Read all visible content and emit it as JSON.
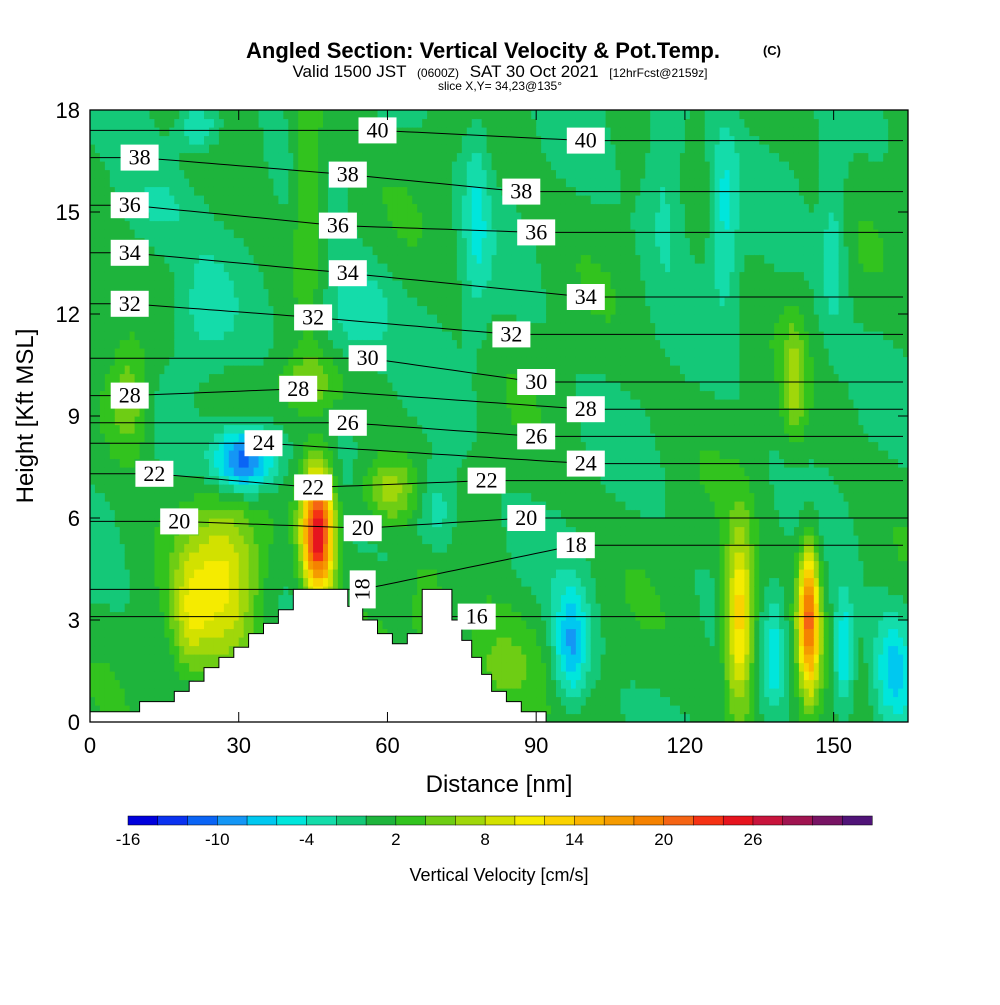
{
  "chart_data": {
    "type": "heatmap",
    "title": "Angled Section: Vertical Velocity & Pot.Temp.",
    "title_unit": "(C)",
    "subtitle_main": "Valid 1500 JST",
    "subtitle_zulu": "(0600Z)",
    "subtitle_date": "SAT 30 Oct 2021",
    "subtitle_fcst": "[12hrFcst@2159z]",
    "slice_label": "slice X,Y= 34,23@135°",
    "xlabel": "Distance [nm]",
    "ylabel": "Height [Kft MSL]",
    "xlim": [
      0,
      165
    ],
    "ylim": [
      0,
      18
    ],
    "x_ticks": [
      0,
      30,
      60,
      90,
      120,
      150
    ],
    "y_ticks": [
      0,
      3,
      6,
      9,
      12,
      15,
      18
    ],
    "colorbar": {
      "label": "Vertical Velocity [cm/s]",
      "colors": [
        "#0000dc",
        "#0a32f0",
        "#0a64f5",
        "#1496f5",
        "#00c8f0",
        "#00e6dc",
        "#14dcaa",
        "#14c878",
        "#1eb43c",
        "#32c31e",
        "#6ecd14",
        "#a0d70a",
        "#d2e100",
        "#f5eb00",
        "#fad200",
        "#fab400",
        "#f59b00",
        "#f58200",
        "#f56414",
        "#f53214",
        "#e6141e",
        "#c8143c",
        "#a01450",
        "#781464",
        "#501478"
      ],
      "min": -16,
      "step": 2,
      "tick_labels": [
        "-16",
        "-10",
        "-4",
        "2",
        "8",
        "14",
        "20",
        "26"
      ],
      "tick_values": [
        -16,
        -10,
        -4,
        2,
        8,
        14,
        20,
        26
      ]
    },
    "theta_labels": [
      {
        "text": "38",
        "x": 10,
        "y": 16.6
      },
      {
        "text": "36",
        "x": 8,
        "y": 15.2
      },
      {
        "text": "34",
        "x": 8,
        "y": 13.8
      },
      {
        "text": "32",
        "x": 8,
        "y": 12.3
      },
      {
        "text": "28",
        "x": 8,
        "y": 9.6
      },
      {
        "text": "22",
        "x": 13,
        "y": 7.3
      },
      {
        "text": "20",
        "x": 18,
        "y": 5.9
      },
      {
        "text": "40",
        "x": 58,
        "y": 17.4
      },
      {
        "text": "38",
        "x": 52,
        "y": 16.1
      },
      {
        "text": "36",
        "x": 50,
        "y": 14.6
      },
      {
        "text": "34",
        "x": 52,
        "y": 13.2
      },
      {
        "text": "32",
        "x": 45,
        "y": 11.9
      },
      {
        "text": "30",
        "x": 56,
        "y": 10.7
      },
      {
        "text": "28",
        "x": 42,
        "y": 9.8
      },
      {
        "text": "26",
        "x": 52,
        "y": 8.8
      },
      {
        "text": "24",
        "x": 35,
        "y": 8.2
      },
      {
        "text": "22",
        "x": 45,
        "y": 6.9
      },
      {
        "text": "20",
        "x": 55,
        "y": 5.7
      },
      {
        "text": "18",
        "x": 55,
        "y": 3.9,
        "rot": -90
      },
      {
        "text": "16",
        "x": 78,
        "y": 3.1
      },
      {
        "text": "40",
        "x": 100,
        "y": 17.1
      },
      {
        "text": "38",
        "x": 87,
        "y": 15.6
      },
      {
        "text": "36",
        "x": 90,
        "y": 14.4
      },
      {
        "text": "34",
        "x": 100,
        "y": 12.5
      },
      {
        "text": "32",
        "x": 85,
        "y": 11.4
      },
      {
        "text": "30",
        "x": 90,
        "y": 10.0
      },
      {
        "text": "28",
        "x": 100,
        "y": 9.2
      },
      {
        "text": "26",
        "x": 90,
        "y": 8.4
      },
      {
        "text": "24",
        "x": 100,
        "y": 7.6
      },
      {
        "text": "22",
        "x": 80,
        "y": 7.1
      },
      {
        "text": "20",
        "x": 88,
        "y": 6.0
      },
      {
        "text": "18",
        "x": 98,
        "y": 5.2
      }
    ],
    "w_features": [
      {
        "x": 46,
        "y": 5.6,
        "sx": 2.2,
        "sy": 1.3,
        "a": 26
      },
      {
        "x": 31,
        "y": 7.7,
        "sx": 4.5,
        "sy": 0.7,
        "a": -14
      },
      {
        "x": 27,
        "y": 4.2,
        "sx": 5.5,
        "sy": 1.8,
        "a": 10
      },
      {
        "x": 20,
        "y": 3.0,
        "sx": 2.5,
        "sy": 1.2,
        "a": 5
      },
      {
        "x": 44,
        "y": 10.0,
        "sx": 4,
        "sy": 0.6,
        "a": 5
      },
      {
        "x": 60,
        "y": 6.8,
        "sx": 4,
        "sy": 0.7,
        "a": 7
      },
      {
        "x": 44,
        "y": 16.0,
        "sx": 2,
        "sy": 2.5,
        "a": 5
      },
      {
        "x": 13,
        "y": 15.0,
        "sx": 6,
        "sy": 1.0,
        "a": -3
      },
      {
        "x": 8,
        "y": 9.5,
        "sx": 3,
        "sy": 1.2,
        "a": 6
      },
      {
        "x": 145,
        "y": 3.0,
        "sx": 1.5,
        "sy": 1.5,
        "a": 20
      },
      {
        "x": 131,
        "y": 3.0,
        "sx": 2.0,
        "sy": 1.8,
        "a": 14
      },
      {
        "x": 142,
        "y": 10.0,
        "sx": 1.5,
        "sy": 1.2,
        "a": 6
      },
      {
        "x": 82,
        "y": 1.5,
        "sx": 6,
        "sy": 1.2,
        "a": 5
      },
      {
        "x": 68,
        "y": 3.5,
        "sx": 2,
        "sy": 1.0,
        "a": 4
      },
      {
        "x": 22,
        "y": 17.5,
        "sx": 3,
        "sy": 0.5,
        "a": -6
      },
      {
        "x": 53,
        "y": 12.0,
        "sx": 5,
        "sy": 1.0,
        "a": -5
      },
      {
        "x": 70,
        "y": 6.2,
        "sx": 3,
        "sy": 1.0,
        "a": -5
      },
      {
        "x": 97,
        "y": 2.2,
        "sx": 2.5,
        "sy": 1.2,
        "a": -9
      },
      {
        "x": 138,
        "y": 2.0,
        "sx": 1.5,
        "sy": 1.2,
        "a": -5
      },
      {
        "x": 152,
        "y": 2.0,
        "sx": 1.5,
        "sy": 1.2,
        "a": -8
      },
      {
        "x": 162,
        "y": 1.5,
        "sx": 3,
        "sy": 1.2,
        "a": -7
      },
      {
        "x": 116,
        "y": 16.0,
        "sx": 3,
        "sy": 2.0,
        "a": -4
      },
      {
        "x": 128,
        "y": 15.0,
        "sx": 2,
        "sy": 2.0,
        "a": -5
      },
      {
        "x": 150,
        "y": 14.0,
        "sx": 2,
        "sy": 2.0,
        "a": -4
      },
      {
        "x": 78,
        "y": 15.0,
        "sx": 2,
        "sy": 2.5,
        "a": -4
      },
      {
        "x": 23,
        "y": 12.0,
        "sx": 4,
        "sy": 1.2,
        "a": -3
      }
    ],
    "terrain": [
      [
        0,
        0.3
      ],
      [
        10,
        0.3
      ],
      [
        10,
        0.6
      ],
      [
        17,
        0.6
      ],
      [
        17,
        0.9
      ],
      [
        20,
        0.9
      ],
      [
        20,
        1.2
      ],
      [
        23,
        1.2
      ],
      [
        23,
        1.6
      ],
      [
        26,
        1.6
      ],
      [
        26,
        1.9
      ],
      [
        29,
        1.9
      ],
      [
        29,
        2.2
      ],
      [
        32,
        2.2
      ],
      [
        32,
        2.6
      ],
      [
        35,
        2.6
      ],
      [
        35,
        2.9
      ],
      [
        38,
        2.9
      ],
      [
        38,
        3.3
      ],
      [
        41,
        3.3
      ],
      [
        41,
        3.9
      ],
      [
        52,
        3.9
      ],
      [
        52,
        3.4
      ],
      [
        55,
        3.4
      ],
      [
        55,
        3.0
      ],
      [
        58,
        3.0
      ],
      [
        58,
        2.6
      ],
      [
        61,
        2.6
      ],
      [
        61,
        2.3
      ],
      [
        64,
        2.3
      ],
      [
        64,
        2.6
      ],
      [
        67,
        2.6
      ],
      [
        67,
        3.9
      ],
      [
        73,
        3.9
      ],
      [
        73,
        3.0
      ],
      [
        75,
        3.0
      ],
      [
        75,
        2.4
      ],
      [
        77,
        2.4
      ],
      [
        77,
        1.9
      ],
      [
        79,
        1.9
      ],
      [
        79,
        1.4
      ],
      [
        81,
        1.4
      ],
      [
        81,
        0.9
      ],
      [
        84,
        0.9
      ],
      [
        84,
        0.6
      ],
      [
        87,
        0.6
      ],
      [
        87,
        0.3
      ],
      [
        92,
        0.3
      ],
      [
        92,
        0
      ],
      [
        0,
        0
      ]
    ]
  }
}
